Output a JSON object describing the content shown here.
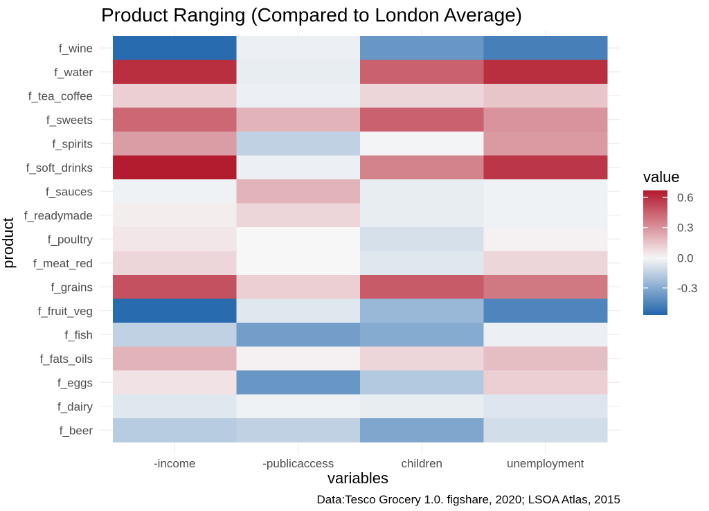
{
  "chart_data": {
    "type": "heatmap",
    "title": "Product Ranging (Compared to London Average)",
    "xlabel": "variables",
    "ylabel": "product",
    "caption": "Data:Tesco Grocery 1.0. figshare, 2020; LSOA Atlas, 2015",
    "x": [
      "-income",
      "-publicaccess",
      "children",
      "unemployment"
    ],
    "y": [
      "f_wine",
      "f_water",
      "f_tea_coffee",
      "f_sweets",
      "f_spirits",
      "f_soft_drinks",
      "f_sauces",
      "f_readymade",
      "f_poultry",
      "f_meat_red",
      "f_grains",
      "f_fruit_veg",
      "f_fish",
      "f_fats_oils",
      "f_eggs",
      "f_dairy",
      "f_beer"
    ],
    "values": [
      [
        -0.55,
        -0.03,
        -0.38,
        -0.47
      ],
      [
        0.6,
        -0.04,
        0.45,
        0.6
      ],
      [
        0.12,
        -0.03,
        0.1,
        0.15
      ],
      [
        0.43,
        0.2,
        0.45,
        0.3
      ],
      [
        0.27,
        -0.15,
        -0.01,
        0.28
      ],
      [
        0.66,
        -0.03,
        0.35,
        0.58
      ],
      [
        -0.02,
        0.2,
        -0.04,
        -0.02
      ],
      [
        0.03,
        0.1,
        -0.04,
        -0.02
      ],
      [
        0.05,
        0.0,
        -0.09,
        0.02
      ],
      [
        0.1,
        0.0,
        -0.06,
        0.1
      ],
      [
        0.5,
        0.12,
        0.47,
        0.38
      ],
      [
        -0.55,
        -0.06,
        -0.25,
        -0.45
      ],
      [
        -0.15,
        -0.35,
        -0.3,
        -0.03
      ],
      [
        0.2,
        0.02,
        0.1,
        0.17
      ],
      [
        0.06,
        -0.38,
        -0.18,
        0.12
      ],
      [
        -0.06,
        -0.02,
        -0.04,
        -0.07
      ],
      [
        -0.17,
        -0.15,
        -0.32,
        -0.1
      ]
    ],
    "colorscale": {
      "low": "#2166ac",
      "mid": "#f7f7f7",
      "high": "#b2182b",
      "min": -0.57,
      "max": 0.67,
      "midpoint": 0.0
    },
    "legend": {
      "title": "value",
      "ticks": [
        0.6,
        0.3,
        0.0,
        -0.3
      ],
      "tick_labels": [
        "0.6",
        "0.3",
        "0.0",
        "-0.3"
      ],
      "position": "right"
    },
    "grid": true
  }
}
